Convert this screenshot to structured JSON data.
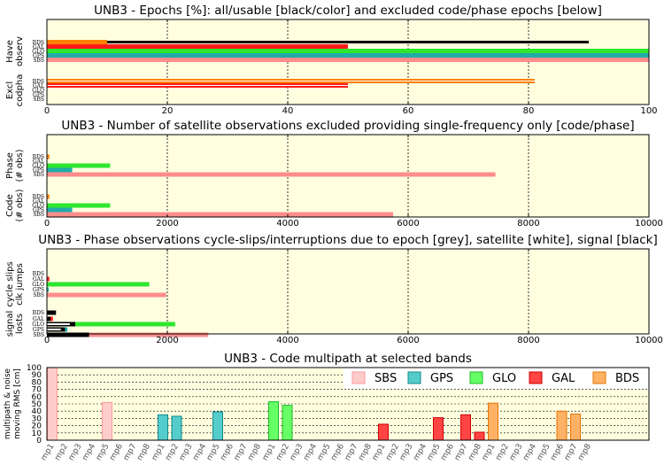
{
  "colors": {
    "BDS": "#ff8000",
    "GAL": "#ff1a1a",
    "GLO": "#2ee62e",
    "GPS": "#22aaaa",
    "SBS": "#ff8c8c",
    "all": "#000000",
    "panel_bg": "#ffffe0",
    "legend_fill": {
      "SBS": "#ffcccc",
      "GPS": "#55cccc",
      "GLO": "#66ff66",
      "GAL": "#ff4444",
      "BDS": "#ffb266"
    },
    "legend_stroke": {
      "SBS": "#ff9999",
      "GPS": "#118888",
      "GLO": "#22bb22",
      "GAL": "#cc0000",
      "BDS": "#e67300"
    }
  },
  "chart_data": [
    {
      "type": "bar",
      "title": "UNB3 - Epochs [%]: all/usable [black/color] and excluded code/phase epochs [below]",
      "xlim": [
        0,
        100
      ],
      "xticks": [
        "0",
        "20",
        "40",
        "60",
        "80",
        "100"
      ],
      "xtick_values": [
        0,
        20,
        40,
        60,
        80,
        100
      ],
      "groups": [
        {
          "label": "Have observ",
          "label_lines": [
            "Have",
            "observ"
          ],
          "systems": [
            "BDS",
            "GAL",
            "GLO",
            "GPS",
            "SBS"
          ],
          "all": [
            90,
            50,
            100,
            100,
            100
          ],
          "usable": [
            10,
            50,
            100,
            100,
            100
          ]
        },
        {
          "label": "Excl codpha",
          "label_lines": [
            "Excl",
            "codpha"
          ],
          "systems": [
            "BDS",
            "GAL",
            "GLO",
            "GPS",
            "SBS"
          ],
          "code": [
            81,
            50,
            0,
            0,
            0
          ],
          "phase": [
            81,
            50,
            0,
            0,
            0
          ]
        }
      ]
    },
    {
      "type": "bar",
      "title": "UNB3 - Number of satellite observations excluded providing single-frequency only [code/phase]",
      "xlim": [
        0,
        10000
      ],
      "xticks": [
        "0",
        "2000",
        "4000",
        "6000",
        "8000",
        "10000"
      ],
      "xtick_values": [
        0,
        2000,
        4000,
        6000,
        8000,
        10000
      ],
      "groups": [
        {
          "label": "Phase (# obs)",
          "label_lines": [
            "Phase",
            "(# obs)"
          ],
          "systems": [
            "BDS",
            "GAL",
            "GLO",
            "GPS",
            "SBS"
          ],
          "values": [
            40,
            0,
            1050,
            420,
            7450
          ]
        },
        {
          "label": "Code (# obs)",
          "label_lines": [
            "Code",
            "(# obs)"
          ],
          "systems": [
            "BDS",
            "GAL",
            "GLO",
            "GPS",
            "SBS"
          ],
          "values": [
            40,
            0,
            1050,
            420,
            5750
          ]
        }
      ]
    },
    {
      "type": "bar",
      "title": "UNB3 - Phase observations cycle-slips/interruptions due to epoch [grey], satellite [white], signal [black]",
      "xlim": [
        0,
        10000
      ],
      "xticks": [
        "0",
        "2000",
        "4000",
        "6000",
        "8000",
        "10000"
      ],
      "xtick_values": [
        0,
        2000,
        4000,
        6000,
        8000,
        10000
      ],
      "groups": [
        {
          "label": "cycle slips clk jumps",
          "label_lines": [
            "cycle slips",
            "clk jumps"
          ],
          "systems": [
            "BDS",
            "GAL",
            "GLO",
            "GPS",
            "SBS"
          ],
          "values": [
            0,
            40,
            1700,
            30,
            1980
          ]
        },
        {
          "label": "signal losts",
          "label_lines": [
            "signal",
            "losts"
          ],
          "systems": [
            "BDS",
            "GAL",
            "GLO",
            "GPS",
            "SBS"
          ],
          "values": [
            150,
            100,
            2130,
            340,
            2680
          ],
          "signal": [
            150,
            60,
            470,
            300,
            700
          ],
          "satellite": [
            0,
            0,
            380,
            230,
            0
          ]
        }
      ]
    },
    {
      "type": "bar",
      "title": "UNB3 - Code multipath at selected bands",
      "ylabel_lines": [
        "multipath & noise",
        "moving RMS [cm]"
      ],
      "ylim": [
        0,
        100
      ],
      "yticks": [
        "0",
        "10",
        "20",
        "30",
        "40",
        "50",
        "60",
        "70",
        "80",
        "90",
        "100"
      ],
      "categories": [
        "mp1",
        "mp2",
        "mp3",
        "mp4",
        "mp5",
        "mp6",
        "mp7",
        "mp8"
      ],
      "legend": [
        "SBS",
        "GPS",
        "GLO",
        "GAL",
        "BDS"
      ],
      "legend_position": "top-right",
      "series": [
        {
          "name": "SBS",
          "values": [
            100,
            0,
            0,
            0,
            52,
            0,
            0,
            0
          ]
        },
        {
          "name": "GPS",
          "values": [
            35,
            33,
            0,
            0,
            39,
            0,
            0,
            0
          ]
        },
        {
          "name": "GLO",
          "values": [
            53,
            48,
            0,
            0,
            0,
            0,
            0,
            0
          ]
        },
        {
          "name": "GAL",
          "values": [
            22,
            0,
            0,
            0,
            31,
            0,
            35,
            11
          ]
        },
        {
          "name": "BDS",
          "values": [
            51,
            0,
            0,
            0,
            0,
            40,
            36,
            0
          ]
        }
      ]
    }
  ]
}
